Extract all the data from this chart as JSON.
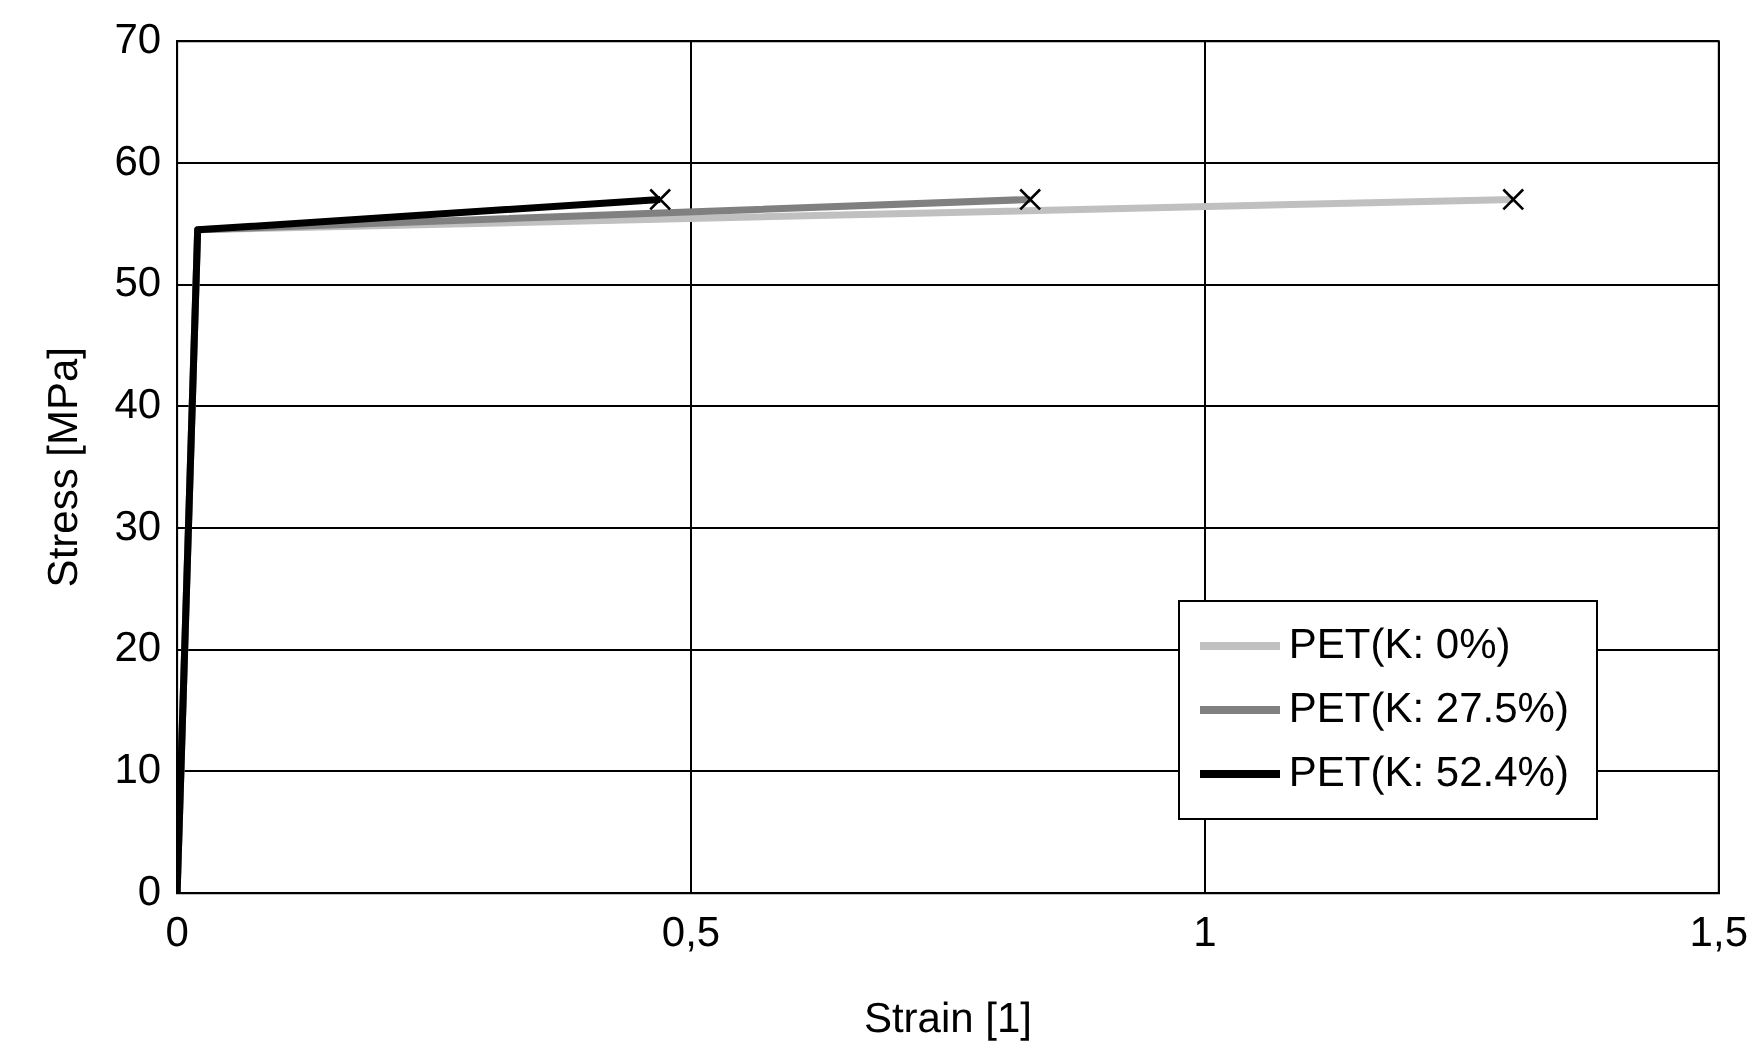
{
  "chart_data": {
    "type": "line",
    "xlabel": "Strain [1]",
    "ylabel": "Stress [MPa]",
    "xlim": [
      0,
      1.5
    ],
    "xticks": [
      0,
      {
        "value": 0.5,
        "label": "0,5"
      },
      1,
      {
        "value": 1.5,
        "label": "1,5"
      }
    ],
    "ylim": [
      0,
      70
    ],
    "yticks": [
      0,
      10,
      20,
      30,
      40,
      50,
      60,
      70
    ],
    "grid": true,
    "legend": "bottom right",
    "line_style": "solid",
    "series": [
      {
        "name": "PET(K: 0%)",
        "color": "#c0c0c0",
        "x": [
          0,
          0.02,
          1.3
        ],
        "values": [
          0,
          54.5,
          57
        ]
      },
      {
        "name": "PET(K: 27.5%)",
        "color": "#808080",
        "x": [
          0,
          0.02,
          0.83
        ],
        "values": [
          0,
          54.5,
          57
        ]
      },
      {
        "name": "PET(K: 52.4%)",
        "color": "#000000",
        "x": [
          0,
          0.02,
          0.47
        ],
        "values": [
          0,
          54.5,
          57
        ]
      },
      {
        "type": "scatter",
        "marker": "cross",
        "color": "#000000",
        "x": [
          1.3,
          0.83,
          0.47
        ],
        "values": [
          57,
          57,
          57
        ]
      }
    ]
  }
}
